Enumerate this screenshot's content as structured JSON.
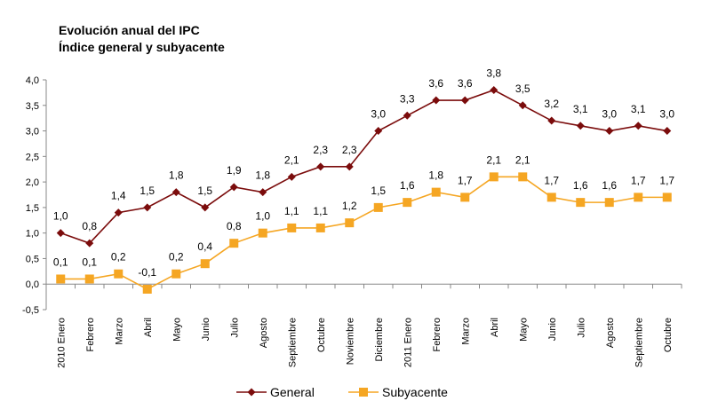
{
  "title": "Evolución anual del IPC",
  "subtitle": "Índice general y subyacente",
  "chart_data": {
    "type": "line",
    "title": "Evolución anual del IPC",
    "subtitle": "Índice general y subyacente",
    "categories": [
      "2010 Enero",
      "Febrero",
      "Marzo",
      "Abril",
      "Mayo",
      "Junio",
      "Julio",
      "Agosto",
      "Septiembre",
      "Octubre",
      "Noviembre",
      "Diciembre",
      "2011 Enero",
      "Febrero",
      "Marzo",
      "Abril",
      "Mayo",
      "Junio",
      "Julio",
      "Agosto",
      "Septiembre",
      "Octubre"
    ],
    "ylim": [
      -0.5,
      4.0
    ],
    "yticks": [
      "-0,5",
      "0,0",
      "0,5",
      "1,0",
      "1,5",
      "2,0",
      "2,5",
      "3,0",
      "3,5",
      "4,0"
    ],
    "grid": false,
    "legend_position": "bottom",
    "series": [
      {
        "name": "General",
        "color": "#7b0c0c",
        "marker": "diamond",
        "values": [
          1.0,
          0.8,
          1.4,
          1.5,
          1.8,
          1.5,
          1.9,
          1.8,
          2.1,
          2.3,
          2.3,
          3.0,
          3.3,
          3.6,
          3.6,
          3.8,
          3.5,
          3.2,
          3.1,
          3.0,
          3.1,
          3.0
        ],
        "labels": [
          "1,0",
          "0,8",
          "1,4",
          "1,5",
          "1,8",
          "1,5",
          "1,9",
          "1,8",
          "2,1",
          "2,3",
          "2,3",
          "3,0",
          "3,3",
          "3,6",
          "3,6",
          "3,8",
          "3,5",
          "3,2",
          "3,1",
          "3,0",
          "3,1",
          "3,0"
        ]
      },
      {
        "name": "Subyacente",
        "color": "#f5a623",
        "marker": "square",
        "values": [
          0.1,
          0.1,
          0.2,
          -0.1,
          0.2,
          0.4,
          0.8,
          1.0,
          1.1,
          1.1,
          1.2,
          1.5,
          1.6,
          1.8,
          1.7,
          2.1,
          2.1,
          1.7,
          1.6,
          1.6,
          1.7,
          1.7
        ],
        "labels": [
          "0,1",
          "0,1",
          "0,2",
          "-0,1",
          "0,2",
          "0,4",
          "0,8",
          "1,0",
          "1,1",
          "1,1",
          "1,2",
          "1,5",
          "1,6",
          "1,8",
          "1,7",
          "2,1",
          "2,1",
          "1,7",
          "1,6",
          "1,6",
          "1,7",
          "1,7"
        ]
      }
    ]
  }
}
